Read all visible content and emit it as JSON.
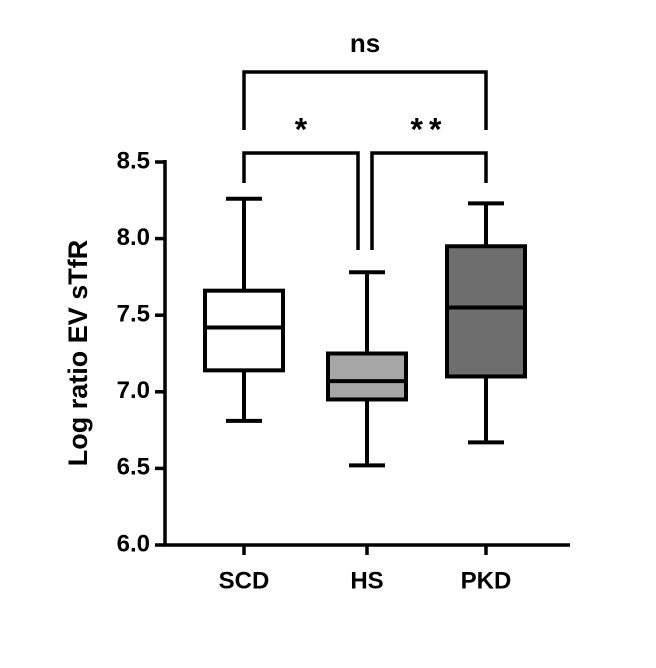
{
  "chart_data": {
    "type": "box",
    "y_label": "Log ratio EV sTfR",
    "categories": [
      "SCD",
      "HS",
      "PKD"
    ],
    "boxes": [
      {
        "min": 6.81,
        "q1": 7.14,
        "median": 7.42,
        "q3": 7.66,
        "max": 8.26,
        "color": "#ffffff"
      },
      {
        "min": 6.52,
        "q1": 6.95,
        "median": 7.07,
        "q3": 7.25,
        "max": 7.78,
        "color": "#a6a6a6"
      },
      {
        "min": 6.67,
        "q1": 7.1,
        "median": 7.55,
        "q3": 7.95,
        "max": 8.23,
        "color": "#6e6e6e"
      }
    ],
    "ylim": [
      6,
      8.5
    ],
    "yticks": [
      {
        "value": 6,
        "label": "6.0"
      },
      6.5,
      {
        "value": 7,
        "label": "7.0"
      },
      7.5,
      {
        "value": 8,
        "label": "8.0"
      },
      8.5
    ],
    "comparisons": [
      {
        "pair": [
          0,
          2
        ],
        "label": "ns"
      },
      {
        "pair": [
          0,
          1
        ],
        "label": "*"
      },
      {
        "pair": [
          1,
          2
        ],
        "label": "**"
      }
    ]
  }
}
